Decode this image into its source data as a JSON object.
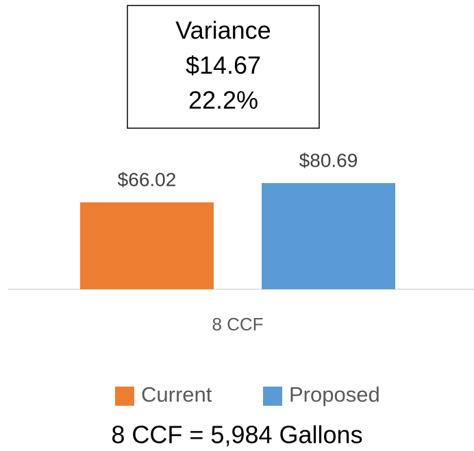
{
  "chart_data": {
    "type": "bar",
    "annotation": [
      "Variance",
      "$14.67",
      "22.2%"
    ],
    "categories": [
      "8 CCF"
    ],
    "series": [
      {
        "name": "Current",
        "color": "#ed7d31",
        "values": [
          66.02
        ],
        "value_labels": [
          "$66.02"
        ]
      },
      {
        "name": "Proposed",
        "color": "#5b9bd5",
        "values": [
          80.69
        ],
        "value_labels": [
          "$80.69"
        ]
      }
    ],
    "ylim": [
      0,
      100
    ],
    "footnote": "8 CCF = 5,984 Gallons"
  }
}
